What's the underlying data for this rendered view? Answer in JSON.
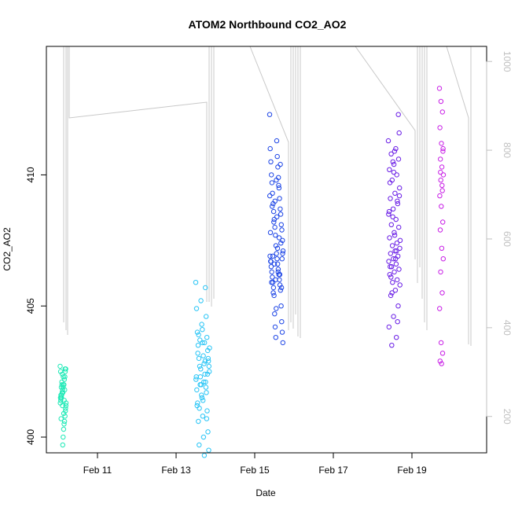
{
  "chart_data": {
    "type": "scatter",
    "title": "ATOM2 Northbound CO2_AO2",
    "xlabel": "Date",
    "ylabel": "CO2_AO2",
    "x_ticks": [
      {
        "label": "Feb 11",
        "day": 11
      },
      {
        "label": "Feb 13",
        "day": 13
      },
      {
        "label": "Feb 15",
        "day": 15
      },
      {
        "label": "Feb 17",
        "day": 17
      },
      {
        "label": "Feb 19",
        "day": 19
      }
    ],
    "xlim_days": [
      9.7,
      20.9
    ],
    "y_ticks": [
      400,
      405,
      410
    ],
    "ylim": [
      399.4,
      414.9
    ],
    "right_axis": {
      "ticks": [
        200,
        400,
        600,
        800,
        1000
      ],
      "ylim": [
        1034,
        118
      ],
      "color": "#c0c0c0"
    },
    "grid": false,
    "legend": "none",
    "series": [
      {
        "color": "#1de9b6",
        "x_range": [
          10.05,
          10.2
        ],
        "y": [
          402.7,
          402.6,
          402.5,
          402.3,
          402.2,
          402.0,
          402.0,
          401.9,
          401.8,
          401.7,
          401.6,
          401.5,
          401.4,
          401.3,
          401.2,
          401.0,
          400.8,
          400.6,
          400.5,
          400.3,
          400.0,
          399.7,
          402.4,
          402.1,
          401.9,
          401.6,
          401.5,
          401.3,
          401.1,
          402.6,
          401.8,
          401.4,
          400.9,
          402.3,
          401.7,
          401.2,
          402.0,
          401.5,
          400.7,
          402.5
        ]
      },
      {
        "color": "#29c5f6",
        "x_range": [
          13.5,
          13.85
        ],
        "y": [
          405.9,
          405.7,
          405.2,
          404.9,
          404.6,
          404.3,
          404.0,
          403.8,
          403.6,
          403.5,
          403.3,
          403.1,
          403.0,
          402.9,
          402.8,
          402.7,
          402.5,
          402.4,
          402.3,
          402.2,
          402.1,
          402.0,
          401.8,
          401.7,
          401.5,
          401.3,
          401.0,
          400.8,
          400.6,
          400.2,
          400.0,
          399.7,
          399.5,
          399.3,
          403.7,
          403.4,
          402.9,
          402.6,
          402.3,
          401.9,
          401.6,
          401.2,
          400.7,
          404.1,
          403.2,
          402.4,
          401.4,
          403.9,
          403.0,
          402.1,
          401.1,
          402.7,
          403.6,
          402.0
        ]
      },
      {
        "color": "#1e46e6",
        "x_range": [
          15.38,
          15.72
        ],
        "y": [
          412.3,
          411.3,
          411.0,
          410.7,
          410.5,
          410.3,
          410.0,
          409.9,
          409.7,
          409.5,
          409.3,
          409.1,
          408.9,
          408.7,
          408.6,
          408.5,
          408.3,
          408.1,
          408.0,
          407.9,
          407.7,
          407.5,
          407.3,
          407.1,
          407.0,
          406.9,
          406.8,
          406.7,
          406.6,
          406.5,
          406.4,
          406.3,
          406.2,
          406.1,
          406.0,
          405.9,
          405.8,
          405.7,
          405.6,
          405.4,
          405.0,
          404.7,
          404.4,
          404.2,
          404.0,
          403.8,
          403.6,
          409.8,
          409.2,
          408.4,
          407.8,
          407.2,
          406.7,
          406.3,
          405.9,
          409.6,
          408.8,
          407.6,
          406.9,
          406.2,
          405.5,
          410.4,
          408.2,
          407.4,
          406.6,
          405.7,
          409.0,
          406.8,
          406.0,
          407.0,
          404.9
        ]
      },
      {
        "color": "#6a1de6",
        "x_range": [
          18.4,
          18.7
        ],
        "y": [
          411.3,
          411.0,
          410.8,
          410.6,
          410.4,
          410.2,
          410.0,
          409.8,
          409.5,
          409.3,
          409.1,
          408.9,
          408.7,
          408.5,
          408.3,
          408.1,
          408.0,
          407.8,
          407.6,
          407.4,
          407.3,
          407.2,
          407.1,
          407.0,
          406.9,
          406.8,
          406.7,
          406.6,
          406.5,
          406.4,
          406.3,
          406.2,
          406.0,
          405.9,
          405.8,
          405.6,
          405.4,
          405.0,
          404.6,
          404.2,
          403.8,
          403.5,
          411.6,
          410.9,
          409.7,
          409.0,
          408.4,
          407.5,
          406.8,
          406.1,
          412.3,
          410.1,
          408.6,
          407.1,
          405.5,
          409.2,
          407.7,
          406.5,
          404.4,
          410.5
        ]
      },
      {
        "color": "#c81ee6",
        "x_range": [
          19.7,
          19.8
        ],
        "y": [
          413.3,
          412.8,
          412.4,
          411.8,
          411.2,
          410.9,
          410.6,
          410.3,
          410.0,
          409.8,
          409.4,
          409.2,
          408.8,
          408.2,
          407.9,
          407.2,
          406.8,
          406.3,
          405.5,
          404.9,
          403.6,
          403.2,
          402.9,
          402.8,
          411.0,
          410.1,
          409.6
        ]
      }
    ]
  }
}
